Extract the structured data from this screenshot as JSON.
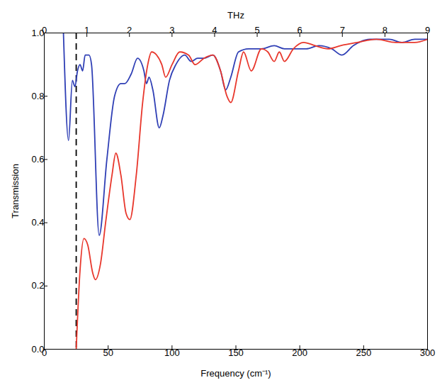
{
  "chart_data": {
    "type": "line",
    "x_label": "Frequency (cm⁻¹)",
    "y_label": "Transmission",
    "x2_label": "THz",
    "xlim": [
      0,
      300
    ],
    "xticks": [
      0,
      50,
      100,
      150,
      200,
      250,
      300
    ],
    "x2lim": [
      0,
      9
    ],
    "x2ticks": [
      0,
      1,
      2,
      3,
      4,
      5,
      6,
      7,
      8,
      9
    ],
    "ylim": [
      0,
      1
    ],
    "yticks": [
      {
        "value": 0,
        "label": "0.0"
      },
      {
        "value": 0.2,
        "label": "0.2"
      },
      {
        "value": 0.4,
        "label": "0.4"
      },
      {
        "value": 0.6,
        "label": "0.6"
      },
      {
        "value": 0.8,
        "label": "0.8"
      },
      {
        "value": 1,
        "label": "1.0"
      }
    ],
    "grid": false,
    "reference_line": {
      "x": 25,
      "line_style": "dashed",
      "color": "#000000"
    },
    "series": [
      {
        "color": "#2f3fb5",
        "line_style": "solid",
        "x": [
          15,
          19,
          22,
          24,
          26,
          28,
          30,
          32,
          35,
          37,
          43,
          49,
          55,
          60,
          63,
          68,
          73,
          78,
          80,
          82,
          85,
          90,
          93,
          98,
          103,
          110,
          115,
          120,
          125,
          132,
          138,
          142,
          146,
          152,
          160,
          170,
          180,
          188,
          195,
          205,
          215,
          225,
          233,
          242,
          255,
          270,
          280,
          290,
          300
        ],
        "values": [
          1.0,
          0.66,
          0.85,
          0.83,
          0.88,
          0.9,
          0.88,
          0.93,
          0.93,
          0.9,
          0.36,
          0.6,
          0.8,
          0.84,
          0.84,
          0.87,
          0.92,
          0.88,
          0.84,
          0.86,
          0.82,
          0.7,
          0.74,
          0.85,
          0.9,
          0.93,
          0.91,
          0.92,
          0.92,
          0.93,
          0.88,
          0.82,
          0.86,
          0.94,
          0.95,
          0.95,
          0.96,
          0.95,
          0.95,
          0.95,
          0.96,
          0.95,
          0.93,
          0.96,
          0.98,
          0.98,
          0.97,
          0.98,
          0.98
        ]
      },
      {
        "color": "#e8372c",
        "line_style": "solid",
        "x": [
          25,
          28,
          31,
          34,
          38,
          40,
          44,
          48,
          53,
          56,
          60,
          64,
          67,
          72,
          77,
          81,
          84,
          88,
          92,
          95,
          100,
          106,
          113,
          118,
          125,
          132,
          138,
          143,
          146,
          152,
          156,
          162,
          170,
          175,
          180,
          184,
          188,
          195,
          203,
          212,
          222,
          232,
          245,
          260,
          275,
          290,
          300
        ],
        "values": [
          0.0,
          0.25,
          0.35,
          0.33,
          0.24,
          0.22,
          0.27,
          0.4,
          0.55,
          0.62,
          0.55,
          0.43,
          0.41,
          0.55,
          0.78,
          0.9,
          0.94,
          0.93,
          0.9,
          0.86,
          0.9,
          0.94,
          0.93,
          0.9,
          0.92,
          0.93,
          0.88,
          0.8,
          0.78,
          0.88,
          0.94,
          0.88,
          0.95,
          0.94,
          0.91,
          0.94,
          0.91,
          0.95,
          0.97,
          0.96,
          0.95,
          0.96,
          0.97,
          0.98,
          0.97,
          0.97,
          0.98
        ]
      }
    ]
  }
}
